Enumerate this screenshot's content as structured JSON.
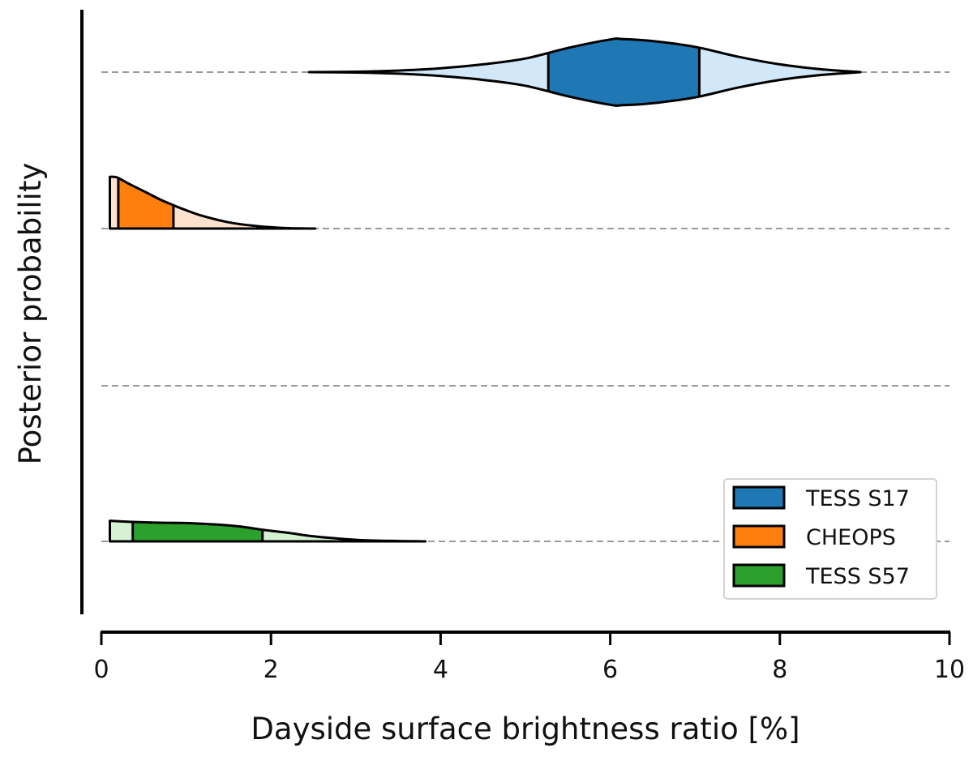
{
  "chart_data": {
    "type": "violin",
    "orientation": "horizontal",
    "title": "",
    "xlabel": "Dayside surface brightness ratio [%]",
    "ylabel": "Posterior probability",
    "xlim": [
      0,
      10
    ],
    "xticks": [
      0,
      2,
      4,
      6,
      8,
      10
    ],
    "xtick_labels": [
      "0",
      "2",
      "4",
      "6",
      "8",
      "10"
    ],
    "grid": "dashed horizontal baselines at each row",
    "legend_position": "lower-right",
    "rows": 4,
    "series": [
      {
        "name": "TESS S17",
        "row": 0,
        "symmetric": true,
        "color": "#1f77b4",
        "light_color": "#d2e7f7",
        "range": [
          2.45,
          8.95
        ],
        "band": [
          5.27,
          7.05
        ],
        "density_x": [
          2.45,
          3.0,
          3.5,
          4.0,
          4.5,
          5.0,
          5.5,
          6.0,
          6.15,
          6.5,
          7.0,
          7.5,
          8.0,
          8.5,
          8.95
        ],
        "density_h": [
          0.0,
          0.01,
          0.04,
          0.1,
          0.2,
          0.35,
          0.62,
          0.84,
          0.85,
          0.8,
          0.65,
          0.4,
          0.2,
          0.07,
          0.0
        ]
      },
      {
        "name": "CHEOPS",
        "row": 1,
        "symmetric": false,
        "color": "#ff7f0e",
        "light_color": "#ffe2cd",
        "range": [
          0.1,
          2.52
        ],
        "band": [
          0.2,
          0.85
        ],
        "density_x": [
          0.1,
          0.15,
          0.2,
          0.3,
          0.5,
          0.7,
          0.85,
          1.0,
          1.2,
          1.5,
          1.8,
          2.1,
          2.3,
          2.52
        ],
        "density_h": [
          1.33,
          1.33,
          1.3,
          1.18,
          0.96,
          0.74,
          0.6,
          0.47,
          0.32,
          0.16,
          0.07,
          0.02,
          0.005,
          0.0
        ]
      },
      {
        "name": "TESS S57",
        "row": 3,
        "symmetric": false,
        "color": "#2ca02c",
        "light_color": "#d5f2d3",
        "range": [
          0.1,
          3.82
        ],
        "band": [
          0.37,
          1.9
        ],
        "density_x": [
          0.1,
          0.37,
          0.7,
          1.0,
          1.3,
          1.6,
          1.9,
          2.2,
          2.5,
          2.8,
          3.1,
          3.5,
          3.82
        ],
        "density_h": [
          0.53,
          0.5,
          0.48,
          0.47,
          0.44,
          0.39,
          0.3,
          0.22,
          0.13,
          0.07,
          0.03,
          0.01,
          0.0
        ]
      }
    ]
  }
}
